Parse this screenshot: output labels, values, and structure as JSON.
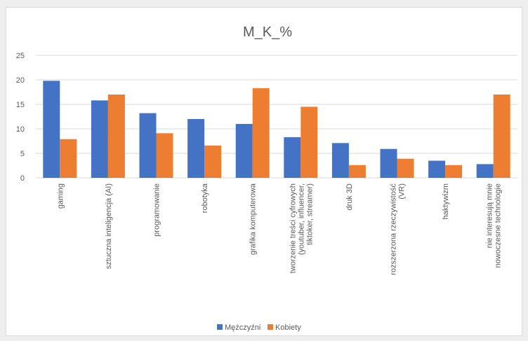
{
  "chart_data": {
    "type": "bar",
    "title": "M_K_%",
    "xlabel": "",
    "ylabel": "",
    "ylim": [
      0,
      25
    ],
    "yticks": [
      0,
      5,
      10,
      15,
      20,
      25
    ],
    "grid": true,
    "legend_position": "bottom",
    "categories": [
      [
        "gaming"
      ],
      [
        "sztuczna inteligencja (AI)"
      ],
      [
        "programowanie"
      ],
      [
        "robotyka"
      ],
      [
        "grafika komputerowa"
      ],
      [
        "tworzenie treści cyfrowych",
        "(youtuber, influencer,",
        "tiktoker, streamer)"
      ],
      [
        "druk 3D"
      ],
      [
        "rozszerzona rzeczywistość",
        "(VR)"
      ],
      [
        "haktywizm"
      ],
      [
        "nie interesują mnie",
        "nowoczesne technologie"
      ]
    ],
    "series": [
      {
        "name": "Mężczyźni",
        "color": "#4472C4",
        "values": [
          19.8,
          15.8,
          13.2,
          12.0,
          11.0,
          8.3,
          7.1,
          5.9,
          3.5,
          2.8
        ]
      },
      {
        "name": "Kobiety",
        "color": "#ED7D31",
        "values": [
          7.9,
          17.0,
          9.1,
          6.6,
          18.3,
          14.5,
          2.6,
          3.9,
          2.6,
          17.0
        ]
      }
    ]
  }
}
